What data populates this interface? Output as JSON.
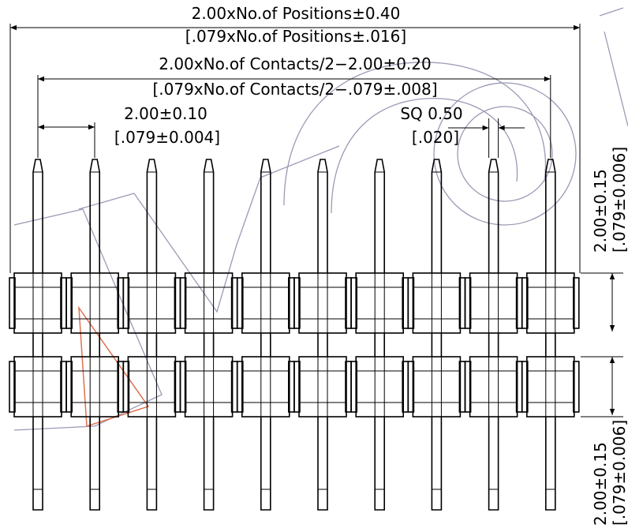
{
  "dimensions": {
    "overall": {
      "metric": "2.00xNo.of Positions±0.40",
      "imperial": "[.079xNo.of Positions±.016]"
    },
    "contacts": {
      "metric": "2.00xNo.of Contacts/2−2.00±0.20",
      "imperial": "[.079xNo.of Contacts/2−.079±.008]"
    },
    "pitch": {
      "metric": "2.00±0.10",
      "imperial": "[.079±0.004]"
    },
    "pin_square": {
      "metric": "SQ 0.50",
      "imperial": "[.020]"
    },
    "row_pitch": {
      "metric": "2.00±0.15",
      "imperial": "[.079±0.006]"
    },
    "tail_length": {
      "metric": "2.00±0.15",
      "imperial": "[.079±0.006]"
    }
  },
  "pin_count_per_row": 10,
  "rows": 2,
  "colors": {
    "line": "#000000",
    "watermark": "#9a9ab5",
    "watermark_accent": "#e07050"
  }
}
